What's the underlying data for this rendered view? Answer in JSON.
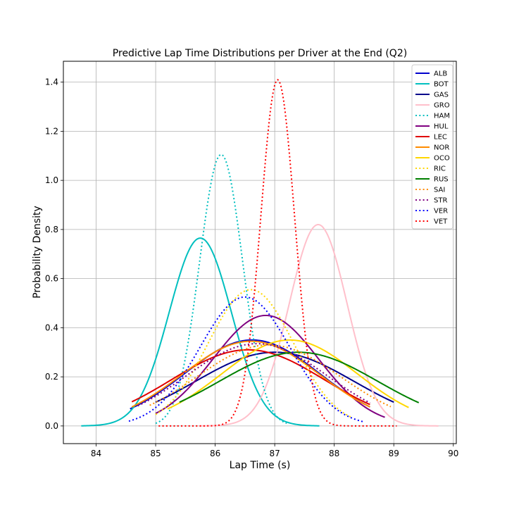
{
  "chart_data": {
    "type": "line",
    "title": "Predictive Lap Time Distributions per Driver at the End (Q2)",
    "xlabel": "Lap Time (s)",
    "ylabel": "Probability Density",
    "xlim": [
      83.45,
      90.05
    ],
    "ylim": [
      -0.072,
      1.485
    ],
    "xticks": [
      84,
      85,
      86,
      87,
      88,
      89,
      90
    ],
    "yticks": [
      0.0,
      0.2,
      0.4,
      0.6,
      0.8,
      1.0,
      1.2,
      1.4
    ],
    "xtick_labels": [
      "84",
      "85",
      "86",
      "87",
      "88",
      "89",
      "90"
    ],
    "ytick_labels": [
      "0.0",
      "0.2",
      "0.4",
      "0.6",
      "0.8",
      "1.0",
      "1.2",
      "1.4"
    ],
    "grid": true,
    "legend_position": "top-right",
    "series": [
      {
        "name": "ALB",
        "color": "#0000cd",
        "style": "solid",
        "mean": 86.62,
        "peak": 0.35,
        "xmin": 84.57,
        "xmax": 88.6
      },
      {
        "name": "BOT",
        "color": "#00bfbf",
        "style": "solid",
        "mean": 85.75,
        "peak": 0.765,
        "xmin": 83.75,
        "xmax": 87.75
      },
      {
        "name": "GAS",
        "color": "#00008b",
        "style": "solid",
        "mean": 87.0,
        "peak": 0.3,
        "xmin": 85.0,
        "xmax": 89.0
      },
      {
        "name": "GRO",
        "color": "#ffc0cb",
        "style": "solid",
        "mean": 87.73,
        "peak": 0.82,
        "xmin": 85.73,
        "xmax": 89.75
      },
      {
        "name": "HAM",
        "color": "#00bfbf",
        "style": "dotted",
        "mean": 86.1,
        "peak": 1.105,
        "xmin": 85.0,
        "xmax": 87.2
      },
      {
        "name": "HUL",
        "color": "#800080",
        "style": "solid",
        "mean": 86.85,
        "peak": 0.45,
        "xmin": 85.0,
        "xmax": 88.85
      },
      {
        "name": "LEC",
        "color": "#e00000",
        "style": "solid",
        "mean": 86.55,
        "peak": 0.31,
        "xmin": 84.6,
        "xmax": 88.6
      },
      {
        "name": "NOR",
        "color": "#ff8c00",
        "style": "solid",
        "mean": 86.6,
        "peak": 0.345,
        "xmin": 84.6,
        "xmax": 88.6
      },
      {
        "name": "OCO",
        "color": "#ffd700",
        "style": "solid",
        "mean": 87.25,
        "peak": 0.35,
        "xmin": 85.2,
        "xmax": 89.25
      },
      {
        "name": "RIC",
        "color": "#ffd700",
        "style": "dotted",
        "mean": 86.6,
        "peak": 0.555,
        "xmin": 85.0,
        "xmax": 88.3
      },
      {
        "name": "RUS",
        "color": "#008000",
        "style": "solid",
        "mean": 87.4,
        "peak": 0.3,
        "xmin": 85.4,
        "xmax": 89.42
      },
      {
        "name": "SAI",
        "color": "#ff8c00",
        "style": "dotted",
        "mean": 86.9,
        "peak": 0.33,
        "xmin": 84.9,
        "xmax": 88.95
      },
      {
        "name": "STR",
        "color": "#800080",
        "style": "dotted",
        "mean": 86.7,
        "peak": 0.335,
        "xmin": 84.7,
        "xmax": 88.6
      },
      {
        "name": "VER",
        "color": "#0000ff",
        "style": "dotted",
        "mean": 86.5,
        "peak": 0.525,
        "xmin": 84.55,
        "xmax": 88.5
      },
      {
        "name": "VET",
        "color": "#ff0000",
        "style": "dotted",
        "mean": 87.05,
        "peak": 1.41,
        "xmin": 85.05,
        "xmax": 89.05
      }
    ]
  }
}
